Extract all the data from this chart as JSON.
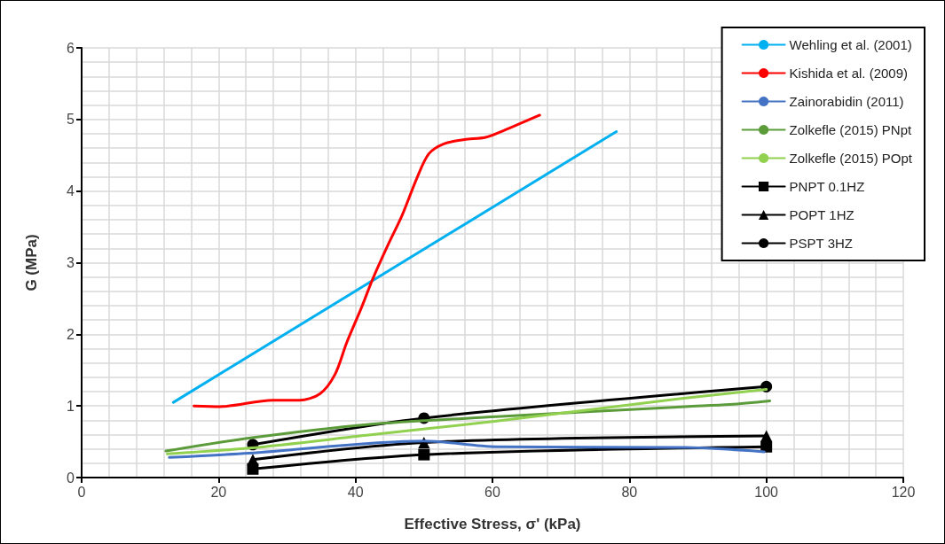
{
  "chart_data": {
    "type": "line",
    "xlabel": "Effective Stress, σ' (kPa)",
    "ylabel": "G (MPa)",
    "xlim": [
      0,
      120
    ],
    "xticks": [
      0,
      20,
      40,
      60,
      80,
      100,
      120
    ],
    "ylim": [
      0,
      6
    ],
    "yticks": [
      0,
      1,
      2,
      3,
      4,
      5,
      6
    ],
    "grid": true,
    "legend": "top right",
    "marker": "none",
    "line_style": "solid",
    "series": [
      {
        "name": "Wehling et al. (2001)",
        "color": "#00b0f0",
        "x": [
          13.4,
          78.1
        ],
        "values": [
          1.05,
          4.83
        ]
      },
      {
        "name": "Kishida et al. (2009)",
        "color": "#ff0000",
        "x": [
          16.4,
          20.2,
          27.9,
          31.8,
          34.8,
          37.0,
          38.7,
          40.9,
          42.5,
          44.7,
          46.8,
          49.0,
          50.7,
          52.9,
          55.9,
          59.0,
          62.0,
          66.9
        ],
        "values": [
          1.0,
          0.99,
          1.08,
          1.08,
          1.17,
          1.44,
          1.88,
          2.38,
          2.77,
          3.24,
          3.66,
          4.19,
          4.52,
          4.66,
          4.72,
          4.75,
          4.86,
          5.06
        ]
      },
      {
        "name": "Zainorabidin (2011)",
        "color": "#4472c4",
        "x": [
          12.8,
          24.4,
          50,
          60.6,
          88.2,
          99.7
        ],
        "values": [
          0.28,
          0.34,
          0.51,
          0.43,
          0.42,
          0.36
        ]
      },
      {
        "name": "Zolkefle (2015) PNpt",
        "color": "#5b9b3a",
        "x": [
          12.3,
          24.4,
          41.6,
          60.6,
          88.2,
          94.7,
          100.5
        ],
        "values": [
          0.37,
          0.55,
          0.74,
          0.85,
          0.99,
          1.02,
          1.07
        ]
      },
      {
        "name": "Zolkefle (2015) POpt",
        "color": "#92d050",
        "x": [
          12.5,
          24.4,
          41.6,
          60.6,
          88.2,
          100
        ],
        "values": [
          0.33,
          0.41,
          0.59,
          0.79,
          1.11,
          1.23
        ]
      },
      {
        "name": "PNPT 0.1HZ",
        "color": "#000000",
        "marker": "square",
        "x": [
          25,
          50,
          100
        ],
        "values": [
          0.12,
          0.32,
          0.43
        ]
      },
      {
        "name": "POPT 1HZ",
        "color": "#000000",
        "marker": "triangle",
        "x": [
          25,
          50,
          100
        ],
        "values": [
          0.25,
          0.49,
          0.58
        ]
      },
      {
        "name": "PSPT 3HZ",
        "color": "#000000",
        "marker": "circle",
        "x": [
          25,
          50,
          100
        ],
        "values": [
          0.46,
          0.83,
          1.27
        ]
      }
    ]
  }
}
